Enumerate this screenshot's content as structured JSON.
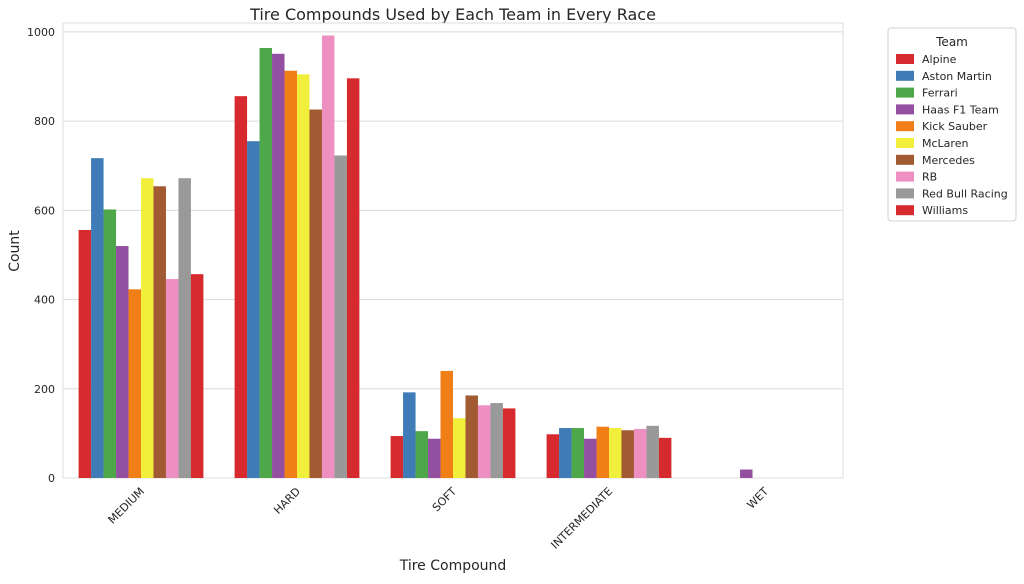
{
  "chart_data": {
    "type": "bar",
    "title": "Tire Compounds Used by Each Team in Every Race",
    "xlabel": "Tire Compound",
    "ylabel": "Count",
    "ylim": [
      0,
      1020
    ],
    "yticks": [
      "0",
      "200",
      "400",
      "600",
      "800",
      "1000"
    ],
    "grid": true,
    "legend_position": "outside-top-right",
    "legend_title": "Team",
    "categories": [
      "MEDIUM",
      "HARD",
      "SOFT",
      "INTERMEDIATE",
      "WET"
    ],
    "series": [
      {
        "name": "Alpine",
        "color": "#d62a2e",
        "values": [
          556,
          856,
          94,
          98,
          null
        ]
      },
      {
        "name": "Aston Martin",
        "color": "#3f7bb6",
        "values": [
          717,
          755,
          192,
          112,
          null
        ]
      },
      {
        "name": "Ferrari",
        "color": "#4ea84a",
        "values": [
          602,
          964,
          105,
          112,
          null
        ]
      },
      {
        "name": "Haas F1 Team",
        "color": "#9350a1",
        "values": [
          520,
          951,
          88,
          88,
          19
        ]
      },
      {
        "name": "Kick Sauber",
        "color": "#f07f18",
        "values": [
          423,
          913,
          240,
          115,
          null
        ]
      },
      {
        "name": "McLaren",
        "color": "#f2ee3c",
        "values": [
          672,
          905,
          134,
          112,
          null
        ]
      },
      {
        "name": "Mercedes",
        "color": "#a15a32",
        "values": [
          654,
          826,
          185,
          107,
          null
        ]
      },
      {
        "name": "RB",
        "color": "#ee8fc2",
        "values": [
          446,
          992,
          163,
          110,
          null
        ]
      },
      {
        "name": "Red Bull Racing",
        "color": "#999999",
        "values": [
          672,
          723,
          168,
          117,
          null
        ]
      },
      {
        "name": "Williams",
        "color": "#d62a2e",
        "values": [
          457,
          896,
          156,
          90,
          null
        ]
      }
    ]
  }
}
